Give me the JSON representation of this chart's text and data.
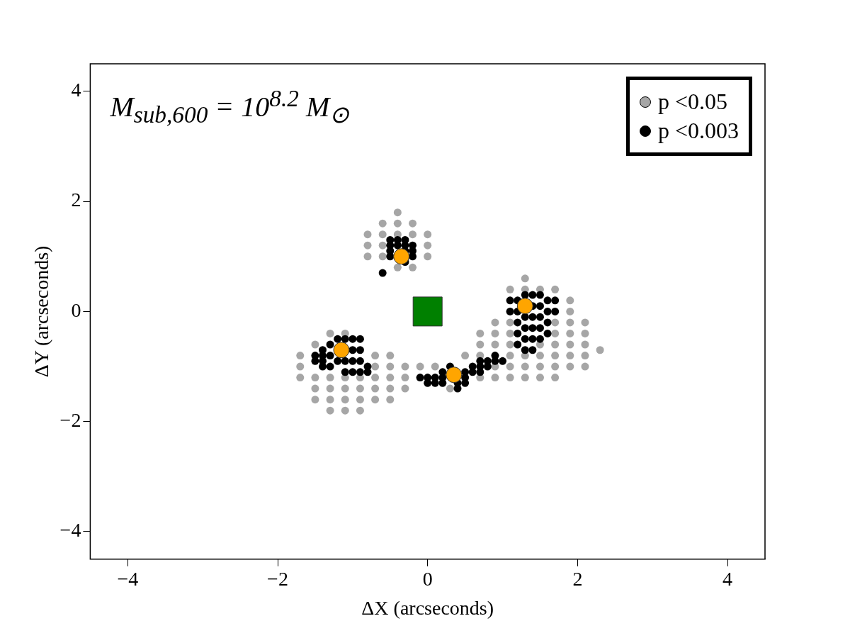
{
  "chart_data": {
    "type": "scatter",
    "xlabel": "ΔX (arcseconds)",
    "ylabel": "ΔY (arcseconds)",
    "annotations": [
      "M$_{sub,600}$ = 10$^{8.2}$ M$_{⊙}$"
    ],
    "xlim": [
      -4.5,
      4.5
    ],
    "ylim": [
      -4.5,
      4.5
    ],
    "xticks": [
      -4,
      -2,
      0,
      2,
      4
    ],
    "yticks": [
      -4,
      -2,
      0,
      2,
      4
    ],
    "grid": false,
    "legend": "top right",
    "marker": "circle",
    "series": [
      {
        "name": "p <0.05",
        "color": "#a6a6a6",
        "x": [
          -0.8,
          -0.8,
          -0.8,
          -0.6,
          -0.6,
          -0.6,
          -0.6,
          -0.4,
          -0.4,
          -0.4,
          -0.4,
          -0.2,
          -0.2,
          -0.2,
          0.0,
          0.0,
          0.0,
          -1.7,
          -1.7,
          -1.7,
          -1.5,
          -1.5,
          -1.5,
          -1.5,
          -1.3,
          -1.3,
          -1.3,
          -1.3,
          -1.3,
          -1.1,
          -1.1,
          -1.1,
          -1.1,
          -1.1,
          -0.9,
          -0.9,
          -0.9,
          -0.9,
          -0.7,
          -0.7,
          -0.7,
          -0.7,
          -0.7,
          -0.5,
          -0.5,
          -0.5,
          -0.5,
          -0.5,
          -0.3,
          -0.3,
          -0.3,
          -0.1,
          0.1,
          0.3,
          0.5,
          0.7,
          0.7,
          0.7,
          0.7,
          0.9,
          0.9,
          0.9,
          0.9,
          0.9,
          1.1,
          1.1,
          1.1,
          1.1,
          1.1,
          1.1,
          1.1,
          1.3,
          1.3,
          1.3,
          1.3,
          1.3,
          1.5,
          1.5,
          1.5,
          1.5,
          1.5,
          1.7,
          1.7,
          1.7,
          1.7,
          1.7,
          1.7,
          1.7,
          1.9,
          1.9,
          1.9,
          1.9,
          1.9,
          1.9,
          1.9,
          2.1,
          2.1,
          2.1,
          2.1,
          2.1,
          2.3
        ],
        "values": [
          1.0,
          1.2,
          1.4,
          1.0,
          1.2,
          1.4,
          1.6,
          0.8,
          1.4,
          1.6,
          1.8,
          0.8,
          1.4,
          1.6,
          1.0,
          1.2,
          1.4,
          -0.8,
          -1.0,
          -1.2,
          -0.6,
          -1.2,
          -1.4,
          -1.6,
          -0.4,
          -1.2,
          -1.4,
          -1.6,
          -1.8,
          -0.4,
          -1.2,
          -1.4,
          -1.6,
          -1.8,
          -1.2,
          -1.4,
          -1.6,
          -1.8,
          -0.8,
          -1.0,
          -1.2,
          -1.4,
          -1.6,
          -0.8,
          -1.0,
          -1.2,
          -1.4,
          -1.6,
          -1.0,
          -1.2,
          -1.4,
          -1.0,
          -1.0,
          -1.4,
          -0.8,
          -0.4,
          -0.6,
          -0.8,
          -1.2,
          -0.2,
          -0.4,
          -0.6,
          -1.0,
          -1.2,
          0.4,
          -0.2,
          -0.4,
          -0.6,
          -0.8,
          -1.0,
          -1.2,
          0.6,
          0.4,
          -0.8,
          -1.0,
          -1.2,
          0.4,
          -0.6,
          -0.8,
          -1.0,
          -1.2,
          0.4,
          -0.2,
          -0.4,
          -0.6,
          -0.8,
          -1.0,
          -1.2,
          0.2,
          0.0,
          -0.2,
          -0.4,
          -0.6,
          -0.8,
          -1.0,
          -0.2,
          -0.4,
          -0.6,
          -0.8,
          -1.0,
          -0.7
        ]
      },
      {
        "name": "p <0.003",
        "color": "#000000",
        "x": [
          -0.5,
          -0.5,
          -0.5,
          -0.5,
          -0.4,
          -0.4,
          -0.3,
          -0.3,
          -0.3,
          -0.3,
          -0.2,
          -0.2,
          -0.2,
          -0.6,
          -1.5,
          -1.5,
          -1.4,
          -1.4,
          -1.4,
          -1.4,
          -1.3,
          -1.3,
          -1.3,
          -1.2,
          -1.2,
          -1.1,
          -1.1,
          -1.1,
          -1.0,
          -1.0,
          -1.0,
          -1.0,
          -0.9,
          -0.9,
          -0.9,
          -0.9,
          -0.8,
          -0.8,
          -0.1,
          0.0,
          0.0,
          0.1,
          0.1,
          0.2,
          0.2,
          0.2,
          0.3,
          0.4,
          0.4,
          0.5,
          0.5,
          0.5,
          0.6,
          0.6,
          0.7,
          0.7,
          0.7,
          0.8,
          0.8,
          0.9,
          0.9,
          1.0,
          1.1,
          1.1,
          1.2,
          1.2,
          1.2,
          1.2,
          1.2,
          1.3,
          1.3,
          1.3,
          1.3,
          1.3,
          1.4,
          1.4,
          1.4,
          1.4,
          1.4,
          1.4,
          1.5,
          1.5,
          1.5,
          1.5,
          1.5,
          1.6,
          1.6,
          1.6,
          1.6,
          1.7,
          1.7
        ],
        "values": [
          1.0,
          1.1,
          1.2,
          1.3,
          1.2,
          1.3,
          0.9,
          1.1,
          1.2,
          1.3,
          1.0,
          1.1,
          1.2,
          0.7,
          -0.8,
          -0.9,
          -0.7,
          -0.8,
          -0.9,
          -1.0,
          -0.6,
          -0.8,
          -1.0,
          -0.5,
          -0.9,
          -0.5,
          -0.9,
          -1.1,
          -0.5,
          -0.7,
          -0.9,
          -1.1,
          -0.5,
          -0.7,
          -0.9,
          -1.1,
          -1.0,
          -1.1,
          -1.2,
          -1.2,
          -1.3,
          -1.2,
          -1.3,
          -1.1,
          -1.2,
          -1.3,
          -1.0,
          -1.3,
          -1.4,
          -1.1,
          -1.2,
          -1.3,
          -1.0,
          -1.1,
          -0.9,
          -1.0,
          -1.1,
          -0.9,
          -1.0,
          -0.8,
          -0.9,
          -0.9,
          0.2,
          0.0,
          0.2,
          0.0,
          -0.2,
          -0.4,
          -0.6,
          0.3,
          -0.1,
          -0.3,
          -0.5,
          -0.7,
          0.3,
          0.1,
          -0.1,
          -0.3,
          -0.5,
          -0.7,
          0.3,
          0.1,
          -0.1,
          -0.3,
          -0.5,
          0.2,
          0.0,
          -0.2,
          -0.4,
          0.2,
          0.0
        ]
      },
      {
        "color": "#ffa500",
        "x": [
          -1.15,
          -0.35,
          0.35,
          1.3
        ],
        "values": [
          -0.7,
          1.0,
          -1.15,
          0.1
        ]
      },
      {
        "color": "#008000",
        "marker": "square",
        "x": [
          0
        ],
        "values": [
          0
        ]
      }
    ]
  }
}
